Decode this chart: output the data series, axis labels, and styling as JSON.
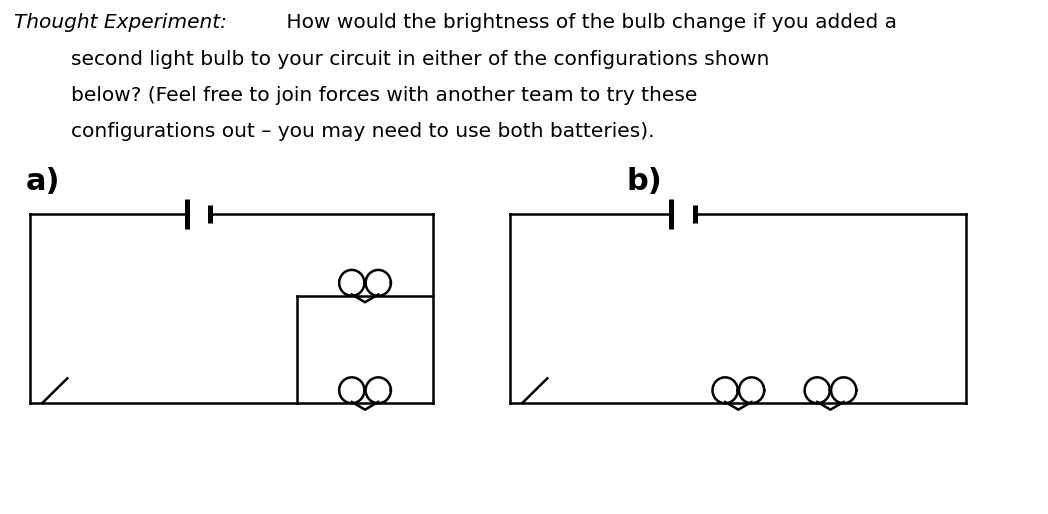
{
  "title_italic": "Thought Experiment:",
  "title_normal": " How would the brightness of the bulb change if you added a",
  "line2": "second light bulb to your circuit in either of the configurations shown",
  "line3": "below? (Feel free to join forces with another team to try these",
  "line4": "configurations out – you may need to use both batteries).",
  "label_a": "a)",
  "label_b": "b)",
  "bg_color": "#ffffff",
  "line_color": "#000000",
  "line_width": 1.8,
  "font_size_text": 14.5,
  "font_size_label": 22
}
